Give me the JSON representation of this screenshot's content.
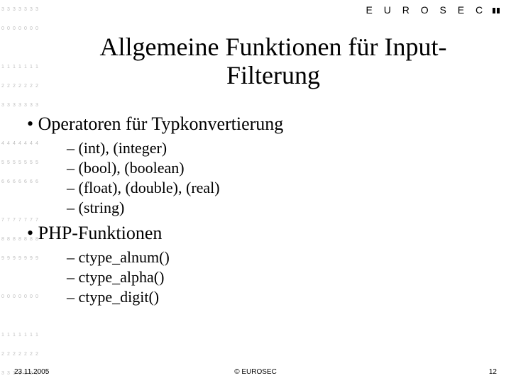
{
  "brand": "E U R O S E C",
  "title_line1": "Allgemeine Funktionen für Input-",
  "title_line2": "Filterung",
  "bullets": {
    "b1": {
      "label": "Operatoren für Typkonvertierung",
      "items": [
        "(int), (integer)",
        "(bool), (boolean)",
        "(float), (double), (real)",
        "(string)"
      ]
    },
    "b2": {
      "label": "PHP-Funktionen",
      "items": [
        "ctype_alnum()",
        "ctype_alpha()",
        "ctype_digit()"
      ]
    }
  },
  "footer": {
    "date": "23.11.2005",
    "copyright": "© EUROSEC",
    "page": "12"
  },
  "bg_sequence": [
    "3",
    "0",
    "",
    "1",
    "2",
    "3",
    "",
    "4",
    "5",
    "6",
    "",
    "7",
    "8",
    "9",
    "",
    "0",
    "",
    "1",
    "2",
    "3"
  ]
}
